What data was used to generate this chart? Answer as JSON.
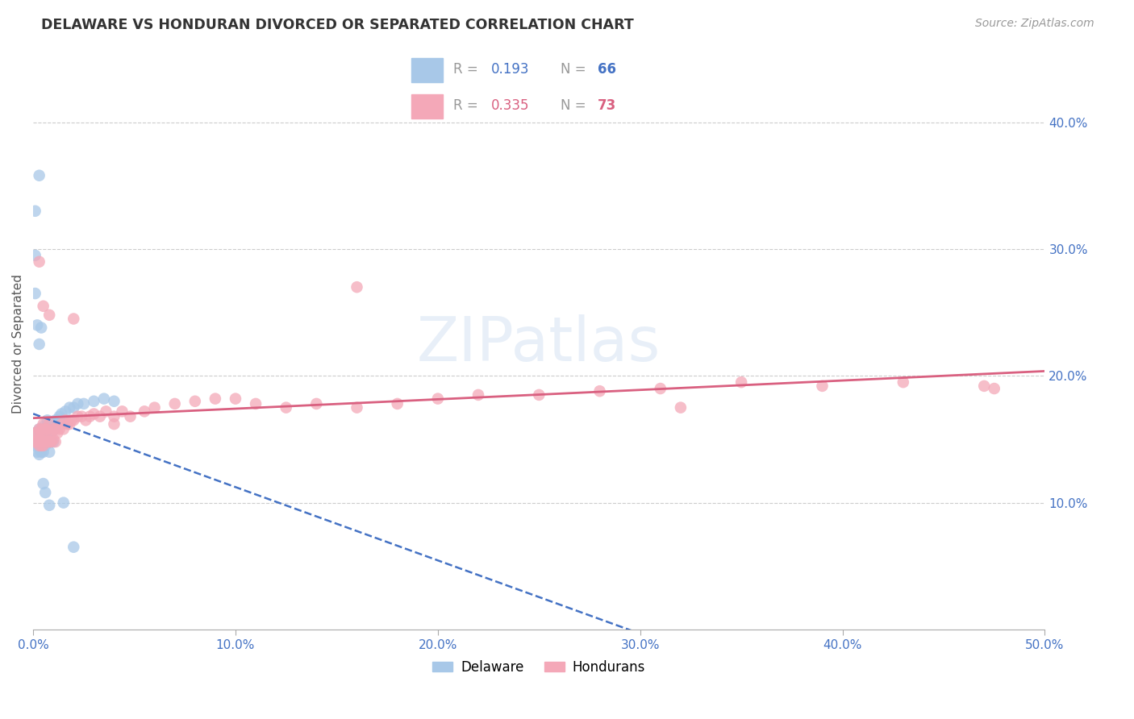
{
  "title": "DELAWARE VS HONDURAN DIVORCED OR SEPARATED CORRELATION CHART",
  "source": "Source: ZipAtlas.com",
  "ylabel": "Divorced or Separated",
  "xlim": [
    0,
    0.5
  ],
  "ylim": [
    0,
    0.45
  ],
  "xticks": [
    0.0,
    0.1,
    0.2,
    0.3,
    0.4,
    0.5
  ],
  "yticks": [
    0.1,
    0.2,
    0.3,
    0.4
  ],
  "xtick_labels": [
    "0.0%",
    "10.0%",
    "20.0%",
    "30.0%",
    "40.0%",
    "50.0%"
  ],
  "ytick_labels": [
    "10.0%",
    "20.0%",
    "30.0%",
    "40.0%"
  ],
  "delaware_color": "#a8c8e8",
  "honduran_color": "#f4a8b8",
  "delaware_line_color": "#4472c4",
  "honduran_line_color": "#d96080",
  "R_delaware": 0.193,
  "R_honduran": 0.335,
  "N_delaware": 66,
  "N_honduran": 73,
  "delaware_x": [
    0.001,
    0.001,
    0.001,
    0.002,
    0.002,
    0.002,
    0.002,
    0.003,
    0.003,
    0.003,
    0.003,
    0.003,
    0.003,
    0.004,
    0.004,
    0.004,
    0.004,
    0.004,
    0.005,
    0.005,
    0.005,
    0.005,
    0.005,
    0.006,
    0.006,
    0.006,
    0.006,
    0.007,
    0.007,
    0.007,
    0.007,
    0.008,
    0.008,
    0.008,
    0.008,
    0.009,
    0.009,
    0.009,
    0.01,
    0.01,
    0.01,
    0.011,
    0.012,
    0.013,
    0.014,
    0.015,
    0.016,
    0.018,
    0.02,
    0.022,
    0.025,
    0.03,
    0.035,
    0.04,
    0.001,
    0.001,
    0.001,
    0.002,
    0.003,
    0.004,
    0.005,
    0.006,
    0.008,
    0.015,
    0.02,
    0.003
  ],
  "delaware_y": [
    0.155,
    0.15,
    0.145,
    0.155,
    0.148,
    0.14,
    0.15,
    0.158,
    0.148,
    0.155,
    0.145,
    0.138,
    0.152,
    0.155,
    0.148,
    0.14,
    0.152,
    0.158,
    0.155,
    0.148,
    0.14,
    0.152,
    0.16,
    0.155,
    0.148,
    0.158,
    0.145,
    0.158,
    0.148,
    0.155,
    0.165,
    0.155,
    0.148,
    0.162,
    0.14,
    0.155,
    0.148,
    0.162,
    0.158,
    0.148,
    0.162,
    0.165,
    0.165,
    0.168,
    0.17,
    0.165,
    0.172,
    0.175,
    0.175,
    0.178,
    0.178,
    0.18,
    0.182,
    0.18,
    0.33,
    0.295,
    0.265,
    0.24,
    0.225,
    0.238,
    0.115,
    0.108,
    0.098,
    0.1,
    0.065,
    0.358
  ],
  "honduran_x": [
    0.001,
    0.001,
    0.002,
    0.002,
    0.003,
    0.003,
    0.003,
    0.004,
    0.004,
    0.004,
    0.005,
    0.005,
    0.005,
    0.006,
    0.006,
    0.006,
    0.007,
    0.007,
    0.008,
    0.008,
    0.009,
    0.009,
    0.01,
    0.01,
    0.011,
    0.011,
    0.012,
    0.013,
    0.014,
    0.015,
    0.016,
    0.017,
    0.018,
    0.019,
    0.02,
    0.022,
    0.024,
    0.026,
    0.028,
    0.03,
    0.033,
    0.036,
    0.04,
    0.044,
    0.048,
    0.055,
    0.06,
    0.07,
    0.08,
    0.09,
    0.1,
    0.11,
    0.125,
    0.14,
    0.16,
    0.18,
    0.2,
    0.22,
    0.25,
    0.28,
    0.31,
    0.35,
    0.39,
    0.43,
    0.475,
    0.003,
    0.005,
    0.008,
    0.02,
    0.04,
    0.16,
    0.32,
    0.47
  ],
  "honduran_y": [
    0.155,
    0.148,
    0.155,
    0.148,
    0.158,
    0.15,
    0.145,
    0.158,
    0.15,
    0.145,
    0.162,
    0.15,
    0.145,
    0.158,
    0.148,
    0.155,
    0.158,
    0.148,
    0.162,
    0.148,
    0.155,
    0.148,
    0.158,
    0.15,
    0.158,
    0.148,
    0.155,
    0.158,
    0.162,
    0.158,
    0.165,
    0.162,
    0.162,
    0.165,
    0.165,
    0.168,
    0.168,
    0.165,
    0.168,
    0.17,
    0.168,
    0.172,
    0.168,
    0.172,
    0.168,
    0.172,
    0.175,
    0.178,
    0.18,
    0.182,
    0.182,
    0.178,
    0.175,
    0.178,
    0.175,
    0.178,
    0.182,
    0.185,
    0.185,
    0.188,
    0.19,
    0.195,
    0.192,
    0.195,
    0.19,
    0.29,
    0.255,
    0.248,
    0.245,
    0.162,
    0.27,
    0.175,
    0.192
  ]
}
